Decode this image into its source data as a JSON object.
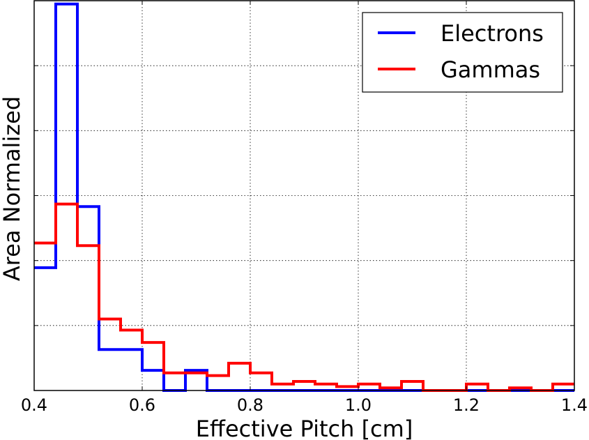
{
  "chart_data": {
    "type": "histogram",
    "title": "",
    "xlabel": "Effective Pitch [cm]",
    "ylabel": "Area Normalized",
    "xlim": [
      0.4,
      1.4
    ],
    "ylim": [
      0,
      6
    ],
    "x_ticks": [
      "0.4",
      "0.6",
      "0.8",
      "1.0",
      "1.2",
      "1.4"
    ],
    "grid": true,
    "legend_position": "top-right",
    "bin_edges": [
      0.4,
      0.44,
      0.48,
      0.52,
      0.56,
      0.6,
      0.64,
      0.68,
      0.72,
      0.76,
      0.8,
      0.84,
      0.88,
      0.92,
      0.96,
      1.0,
      1.04,
      1.08,
      1.12,
      1.16,
      1.2,
      1.24,
      1.28,
      1.32,
      1.36,
      1.4
    ],
    "series": [
      {
        "name": "Electrons",
        "color": "#0000ff",
        "values": [
          1.89,
          5.95,
          2.83,
          0.63,
          0.63,
          0.31,
          0.0,
          0.31,
          0.0,
          0.0,
          0.0,
          0.0,
          0.0,
          0.0,
          0.0,
          0.0,
          0.0,
          0.0,
          0.0,
          0.0,
          0.0,
          0.0,
          0.0,
          0.0,
          0.0
        ]
      },
      {
        "name": "Gammas",
        "color": "#ff0000",
        "values": [
          2.27,
          2.87,
          2.23,
          1.1,
          0.93,
          0.74,
          0.27,
          0.27,
          0.23,
          0.42,
          0.27,
          0.1,
          0.14,
          0.1,
          0.06,
          0.1,
          0.04,
          0.14,
          0.0,
          0.0,
          0.1,
          0.0,
          0.04,
          0.0,
          0.1
        ]
      }
    ]
  }
}
